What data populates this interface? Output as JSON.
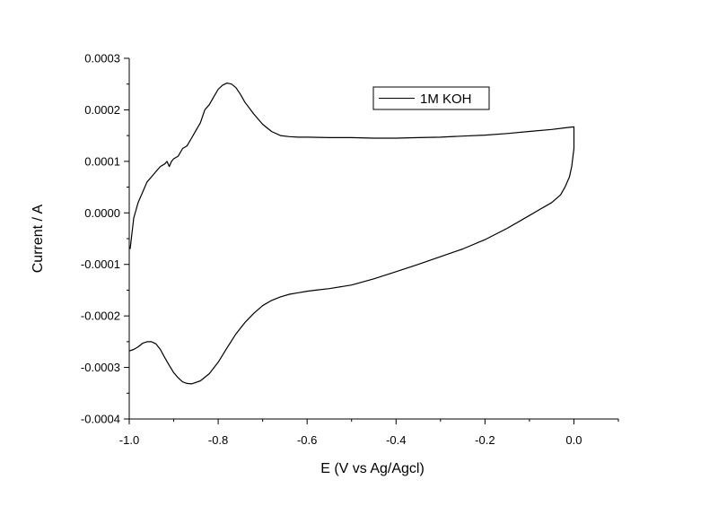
{
  "chart_data": {
    "type": "line",
    "title": "",
    "xlabel": "E (V vs Ag/Agcl)",
    "ylabel": "Current / A",
    "xlim": [
      -1.0,
      0.1
    ],
    "ylim": [
      -0.0004,
      0.0003
    ],
    "x_ticks": [
      -1.0,
      -0.8,
      -0.6,
      -0.4,
      -0.2,
      0.0
    ],
    "x_tick_labels": [
      "-1.0",
      "-0.8",
      "-0.6",
      "-0.4",
      "-0.2",
      "0.0"
    ],
    "y_ticks": [
      -0.0004,
      -0.0003,
      -0.0002,
      -0.0001,
      0.0,
      0.0001,
      0.0002,
      0.0003
    ],
    "y_tick_labels": [
      "-0.0004",
      "-0.0003",
      "-0.0002",
      "-0.0001",
      "0.0000",
      "0.0001",
      "0.0002",
      "0.0003"
    ],
    "grid": false,
    "legend_position": "top-right",
    "series": [
      {
        "name": "1M KOH",
        "color": "#000000",
        "x": [
          -0.998,
          -0.99,
          -0.98,
          -0.97,
          -0.96,
          -0.95,
          -0.94,
          -0.93,
          -0.92,
          -0.915,
          -0.91,
          -0.905,
          -0.9,
          -0.89,
          -0.88,
          -0.87,
          -0.86,
          -0.85,
          -0.84,
          -0.83,
          -0.82,
          -0.81,
          -0.8,
          -0.79,
          -0.78,
          -0.77,
          -0.76,
          -0.75,
          -0.74,
          -0.72,
          -0.7,
          -0.68,
          -0.66,
          -0.64,
          -0.62,
          -0.6,
          -0.55,
          -0.5,
          -0.45,
          -0.4,
          -0.35,
          -0.3,
          -0.25,
          -0.2,
          -0.15,
          -0.1,
          -0.05,
          -0.02,
          0.0,
          0.0,
          -0.005,
          -0.01,
          -0.02,
          -0.03,
          -0.05,
          -0.08,
          -0.1,
          -0.15,
          -0.2,
          -0.25,
          -0.3,
          -0.35,
          -0.4,
          -0.45,
          -0.5,
          -0.55,
          -0.58,
          -0.6,
          -0.62,
          -0.64,
          -0.66,
          -0.68,
          -0.7,
          -0.72,
          -0.74,
          -0.76,
          -0.78,
          -0.8,
          -0.82,
          -0.84,
          -0.86,
          -0.87,
          -0.88,
          -0.89,
          -0.9,
          -0.91,
          -0.92,
          -0.93,
          -0.94,
          -0.95,
          -0.96,
          -0.97,
          -0.98,
          -0.99,
          -1.0
        ],
        "y": [
          -7e-05,
          -1e-05,
          2e-05,
          4e-05,
          6e-05,
          7e-05,
          8e-05,
          9e-05,
          9.5e-05,
          0.0001,
          9e-05,
          0.0001,
          0.000105,
          0.00011,
          0.000125,
          0.00013,
          0.000145,
          0.00016,
          0.000175,
          0.0002,
          0.00021,
          0.000225,
          0.00024,
          0.000248,
          0.000252,
          0.00025,
          0.000243,
          0.00023,
          0.000215,
          0.000192,
          0.000172,
          0.000158,
          0.00015,
          0.000148,
          0.000147,
          0.000147,
          0.000146,
          0.000146,
          0.000145,
          0.000145,
          0.000146,
          0.000147,
          0.000149,
          0.000151,
          0.000154,
          0.000158,
          0.000162,
          0.000165,
          0.000167,
          0.000125,
          9e-05,
          7e-05,
          5e-05,
          3.5e-05,
          2e-05,
          5e-06,
          -5e-06,
          -3e-05,
          -5.2e-05,
          -7e-05,
          -8.5e-05,
          -0.0001,
          -0.000114,
          -0.000128,
          -0.00014,
          -0.000147,
          -0.00015,
          -0.000152,
          -0.000155,
          -0.000158,
          -0.000163,
          -0.00017,
          -0.00018,
          -0.000195,
          -0.000213,
          -0.000235,
          -0.000262,
          -0.00029,
          -0.000312,
          -0.000326,
          -0.000332,
          -0.000331,
          -0.000328,
          -0.00032,
          -0.00031,
          -0.000296,
          -0.000281,
          -0.000265,
          -0.000254,
          -0.00025,
          -0.00025,
          -0.000253,
          -0.00026,
          -0.000265,
          -0.000268
        ]
      }
    ]
  }
}
